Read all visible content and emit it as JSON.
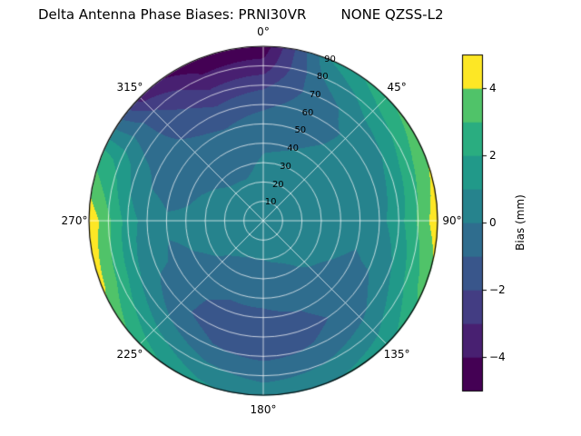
{
  "chart_data": {
    "type": "heatmap",
    "projection": "polar",
    "title": "Delta Antenna Phase Biases: PRNI30VR        NONE QZSS-L2",
    "theta_zero_location": "N",
    "theta_direction": "clockwise",
    "angular_ticks": [
      "0°",
      "45°",
      "90°",
      "135°",
      "180°",
      "225°",
      "270°",
      "315°"
    ],
    "radial_ticks": [
      "10",
      "20",
      "30",
      "40",
      "50",
      "60",
      "70",
      "80",
      "90"
    ],
    "radial_range": [
      0,
      90
    ],
    "radial_label_angle_deg": 22.5,
    "grid_lines": {
      "color": "#ffffff",
      "radial_step": 10,
      "angular_step_deg": 45
    },
    "colorbar": {
      "label": "Bias (mm)",
      "min": -5,
      "max": 5,
      "levels": [
        -5,
        -4,
        -3,
        -2,
        -1,
        0,
        1,
        2,
        3,
        4,
        5
      ],
      "ticks": [
        {
          "value": 4,
          "label": "4"
        },
        {
          "value": 2,
          "label": "2"
        },
        {
          "value": 0,
          "label": "0"
        },
        {
          "value": -2,
          "label": "−2"
        },
        {
          "value": -4,
          "label": "−4"
        }
      ],
      "colormap": "viridis",
      "colormap_stops": [
        [
          0.0,
          "#440154"
        ],
        [
          0.125,
          "#482475"
        ],
        [
          0.25,
          "#414487"
        ],
        [
          0.375,
          "#355f8d"
        ],
        [
          0.5,
          "#2a788e"
        ],
        [
          0.625,
          "#21918c"
        ],
        [
          0.75,
          "#22a884"
        ],
        [
          0.875,
          "#44bf70"
        ],
        [
          0.94,
          "#7ad151"
        ],
        [
          0.97,
          "#bddf26"
        ],
        [
          1.0,
          "#fde725"
        ]
      ]
    },
    "grid": {
      "azimuths_deg": [
        0,
        22.5,
        45,
        67.5,
        90,
        112.5,
        135,
        157.5,
        180,
        202.5,
        225,
        247.5,
        270,
        292.5,
        315,
        337.5
      ],
      "radii": [
        0,
        10,
        20,
        30,
        40,
        50,
        60,
        70,
        80,
        90
      ],
      "bias_mm": [
        [
          0.3,
          0.3,
          0.2,
          0.1,
          -0.1,
          -0.5,
          -1.2,
          -2.2,
          -3.6,
          -4.6
        ],
        [
          0.3,
          0.3,
          0.2,
          0.1,
          0.0,
          -0.2,
          -0.5,
          -0.6,
          0.0,
          1.0
        ],
        [
          0.3,
          0.3,
          0.3,
          0.3,
          0.2,
          0.1,
          0.1,
          0.6,
          1.6,
          2.8
        ],
        [
          0.3,
          0.3,
          0.3,
          0.3,
          0.3,
          0.2,
          0.5,
          1.2,
          2.6,
          3.9
        ],
        [
          0.3,
          0.3,
          0.3,
          0.3,
          0.3,
          0.3,
          0.7,
          1.6,
          3.2,
          4.7
        ],
        [
          0.3,
          0.3,
          0.3,
          0.2,
          0.1,
          -0.1,
          0.1,
          0.9,
          2.2,
          3.5
        ],
        [
          0.3,
          0.3,
          0.2,
          0.1,
          -0.2,
          -0.5,
          -0.7,
          -0.2,
          0.7,
          1.6
        ],
        [
          0.3,
          0.2,
          0.1,
          -0.2,
          -0.6,
          -1.0,
          -1.3,
          -0.9,
          0.0,
          0.9
        ],
        [
          0.3,
          0.2,
          0.0,
          -0.3,
          -0.8,
          -1.2,
          -1.6,
          -1.2,
          -0.3,
          0.6
        ],
        [
          0.3,
          0.2,
          0.0,
          -0.3,
          -0.8,
          -1.3,
          -1.5,
          -0.9,
          0.2,
          1.2
        ],
        [
          0.3,
          0.2,
          0.1,
          -0.1,
          -0.5,
          -0.8,
          -0.8,
          0.1,
          1.3,
          2.5
        ],
        [
          0.3,
          0.3,
          0.2,
          0.2,
          0.0,
          -0.1,
          0.2,
          1.1,
          2.7,
          4.2
        ],
        [
          0.3,
          0.3,
          0.3,
          0.2,
          0.1,
          0.1,
          0.5,
          1.5,
          3.2,
          4.8
        ],
        [
          0.3,
          0.3,
          0.2,
          0.1,
          -0.1,
          -0.3,
          -0.2,
          0.5,
          1.7,
          2.4
        ],
        [
          0.3,
          0.2,
          0.1,
          -0.1,
          -0.4,
          -0.7,
          -1.0,
          -1.4,
          -1.9,
          -3.4
        ],
        [
          0.3,
          0.2,
          0.1,
          -0.2,
          -0.5,
          -0.9,
          -1.6,
          -2.6,
          -3.8,
          -4.8
        ]
      ]
    }
  }
}
